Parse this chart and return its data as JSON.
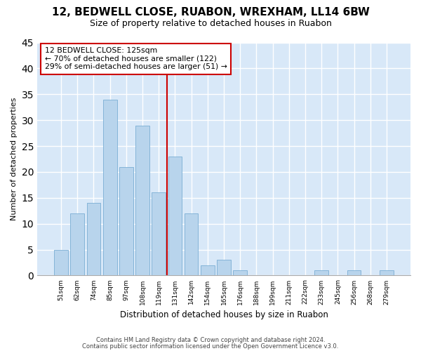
{
  "title1": "12, BEDWELL CLOSE, RUABON, WREXHAM, LL14 6BW",
  "title2": "Size of property relative to detached houses in Ruabon",
  "xlabel": "Distribution of detached houses by size in Ruabon",
  "ylabel": "Number of detached properties",
  "categories": [
    "51sqm",
    "62sqm",
    "74sqm",
    "85sqm",
    "97sqm",
    "108sqm",
    "119sqm",
    "131sqm",
    "142sqm",
    "154sqm",
    "165sqm",
    "176sqm",
    "188sqm",
    "199sqm",
    "211sqm",
    "222sqm",
    "233sqm",
    "245sqm",
    "256sqm",
    "268sqm",
    "279sqm"
  ],
  "values": [
    5,
    12,
    14,
    34,
    21,
    29,
    16,
    23,
    12,
    2,
    3,
    1,
    0,
    0,
    0,
    0,
    1,
    0,
    1,
    0,
    1
  ],
  "bar_color": "#b8d4ec",
  "bar_edge_color": "#7aaed4",
  "vline_x": 6.5,
  "vline_color": "#cc0000",
  "annotation_line1": "12 BEDWELL CLOSE: 125sqm",
  "annotation_line2": "← 70% of detached houses are smaller (122)",
  "annotation_line3": "29% of semi-detached houses are larger (51) →",
  "annotation_box_edgecolor": "#cc0000",
  "plot_bg_color": "#d8e8f8",
  "fig_bg_color": "#ffffff",
  "grid_color": "#ffffff",
  "ylim": [
    0,
    45
  ],
  "yticks": [
    0,
    5,
    10,
    15,
    20,
    25,
    30,
    35,
    40,
    45
  ],
  "title1_fontsize": 11,
  "title2_fontsize": 9,
  "footer1": "Contains HM Land Registry data © Crown copyright and database right 2024.",
  "footer2": "Contains public sector information licensed under the Open Government Licence v3.0."
}
